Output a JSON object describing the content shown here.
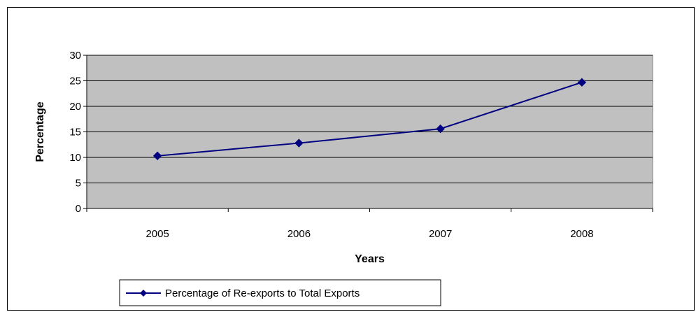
{
  "chart_data": {
    "type": "line",
    "categories": [
      "2005",
      "2006",
      "2007",
      "2008"
    ],
    "series": [
      {
        "name": "Percentage of Re-exports to Total Exports",
        "values": [
          10.3,
          12.8,
          15.6,
          24.7
        ]
      }
    ],
    "xlabel": "Years",
    "ylabel": "Percentage",
    "ylim": [
      0,
      30
    ],
    "yticks": [
      0,
      5,
      10,
      15,
      20,
      25,
      30
    ],
    "grid": true,
    "legend": "bottom-left",
    "colors": {
      "series": "#000080",
      "plot_background": "#c0c0c0",
      "gridline": "#000000"
    }
  }
}
